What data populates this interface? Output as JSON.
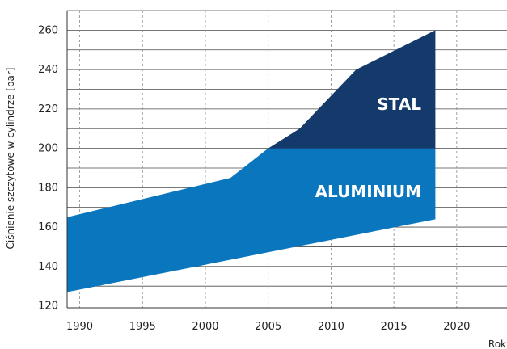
{
  "chart_data": {
    "type": "area",
    "xlabel": "Rok",
    "ylabel": "Ciśnienie szczytowe w cylindrze [bar]",
    "xlim": [
      1989,
      2024
    ],
    "ylim": [
      119,
      270
    ],
    "x_ticks": [
      1990,
      1995,
      2000,
      2005,
      2010,
      2015,
      2020
    ],
    "y_ticks": [
      120,
      140,
      160,
      180,
      200,
      220,
      240,
      260
    ],
    "grid": {
      "x": true,
      "y": true,
      "x_style": "dashed",
      "y_style": "solid"
    },
    "series": [
      {
        "name": "ALUMINIUM",
        "color": "#0a76bd",
        "upper": [
          {
            "x": 1989,
            "y": 165
          },
          {
            "x": 2002,
            "y": 185
          },
          {
            "x": 2005,
            "y": 200
          },
          {
            "x": 2018.3,
            "y": 200
          }
        ],
        "lower": [
          {
            "x": 1989,
            "y": 127
          },
          {
            "x": 2018.3,
            "y": 164
          }
        ]
      },
      {
        "name": "STAL",
        "color": "#133a6b",
        "upper": [
          {
            "x": 2005,
            "y": 200
          },
          {
            "x": 2007.5,
            "y": 210
          },
          {
            "x": 2012,
            "y": 240
          },
          {
            "x": 2018.3,
            "y": 260
          }
        ],
        "lower": [
          {
            "x": 2005,
            "y": 200
          },
          {
            "x": 2018.3,
            "y": 200
          }
        ]
      }
    ]
  }
}
